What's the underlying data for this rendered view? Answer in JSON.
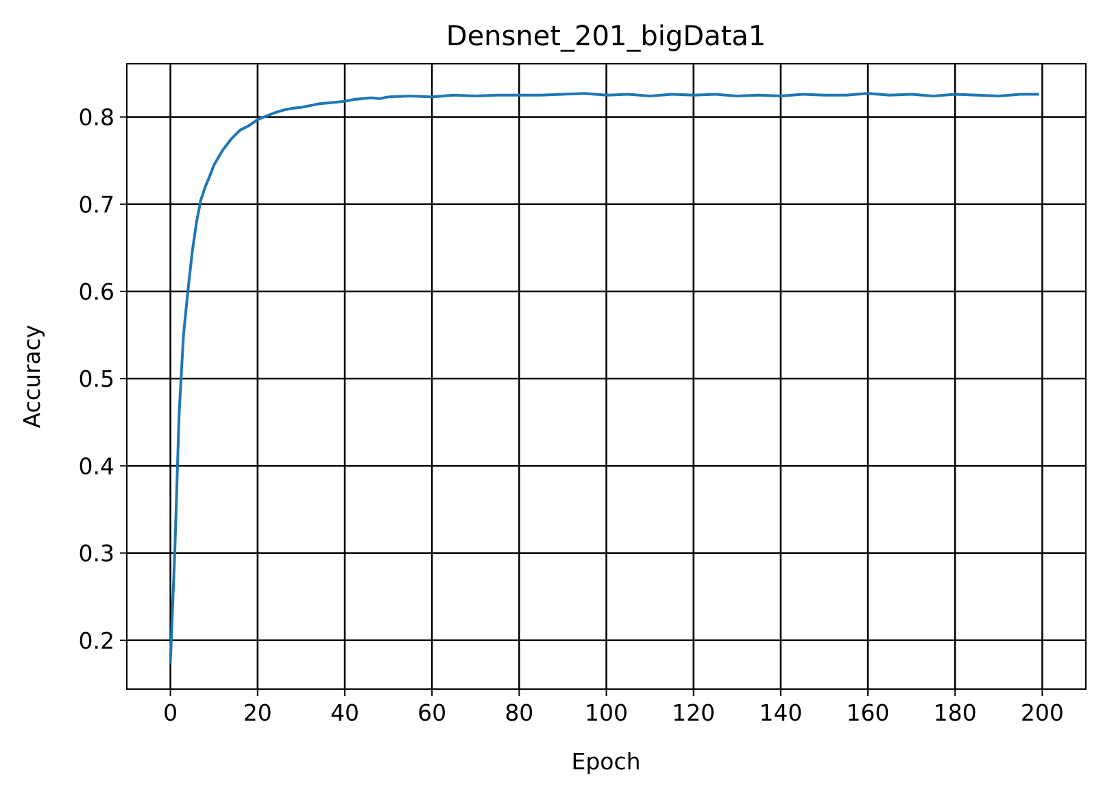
{
  "chart_data": {
    "type": "line",
    "title": "Densnet_201_bigData1",
    "xlabel": "Epoch",
    "ylabel": "Accuracy",
    "xlim": [
      -10,
      210
    ],
    "ylim": [
      0.144,
      0.861
    ],
    "grid": true,
    "x_ticks": [
      0,
      20,
      40,
      60,
      80,
      100,
      120,
      140,
      160,
      180,
      200
    ],
    "x_tick_labels": [
      "0",
      "20",
      "40",
      "60",
      "80",
      "100",
      "120",
      "140",
      "160",
      "180",
      "200"
    ],
    "y_ticks": [
      0.2,
      0.3,
      0.4,
      0.5,
      0.6,
      0.7,
      0.8
    ],
    "y_tick_labels": [
      "0.2",
      "0.3",
      "0.4",
      "0.5",
      "0.6",
      "0.7",
      "0.8"
    ],
    "colors": {
      "line": "#1f77b4",
      "grid": "#000000",
      "axes": "#000000",
      "background": "#ffffff"
    },
    "series": [
      {
        "x": [
          0,
          1,
          2,
          3,
          4,
          5,
          6,
          7,
          8,
          9,
          10,
          12,
          14,
          16,
          18,
          20,
          22,
          24,
          26,
          28,
          30,
          32,
          34,
          36,
          38,
          40,
          42,
          44,
          46,
          48,
          50,
          55,
          60,
          65,
          70,
          75,
          80,
          85,
          90,
          95,
          100,
          105,
          110,
          115,
          120,
          125,
          130,
          135,
          140,
          145,
          150,
          155,
          160,
          165,
          170,
          175,
          180,
          185,
          190,
          195,
          199
        ],
        "values": [
          0.175,
          0.3,
          0.46,
          0.55,
          0.6,
          0.645,
          0.68,
          0.705,
          0.72,
          0.732,
          0.745,
          0.762,
          0.775,
          0.785,
          0.79,
          0.797,
          0.801,
          0.805,
          0.808,
          0.81,
          0.811,
          0.813,
          0.815,
          0.816,
          0.817,
          0.818,
          0.82,
          0.821,
          0.822,
          0.821,
          0.823,
          0.824,
          0.823,
          0.825,
          0.824,
          0.825,
          0.825,
          0.825,
          0.826,
          0.827,
          0.825,
          0.826,
          0.824,
          0.826,
          0.825,
          0.826,
          0.824,
          0.825,
          0.824,
          0.826,
          0.825,
          0.825,
          0.827,
          0.825,
          0.826,
          0.824,
          0.826,
          0.825,
          0.824,
          0.826,
          0.826
        ]
      }
    ]
  }
}
